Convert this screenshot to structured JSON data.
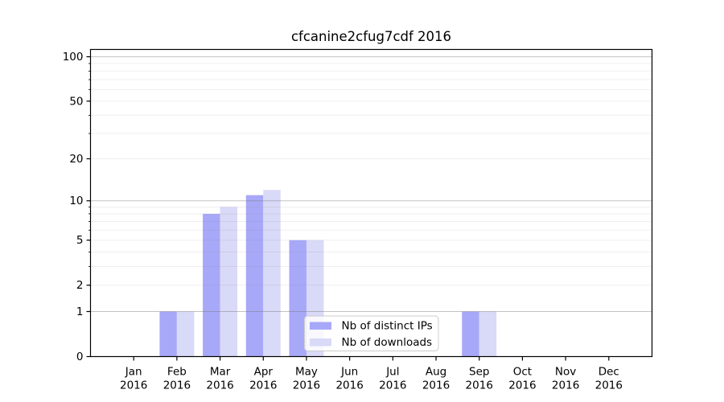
{
  "window": {
    "background": "#ffffff"
  },
  "chart_data": {
    "type": "bar",
    "title": "cfcanine2cfug7cdf 2016",
    "categories": [
      "Jan",
      "Feb",
      "Mar",
      "Apr",
      "May",
      "Jun",
      "Jul",
      "Aug",
      "Sep",
      "Oct",
      "Nov",
      "Dec"
    ],
    "year": "2016",
    "series": [
      {
        "name": "Nb of distinct IPs",
        "color": "#a8a8f8",
        "values": [
          0,
          1,
          8,
          11,
          5,
          0,
          0,
          0,
          1,
          0,
          0,
          0
        ]
      },
      {
        "name": "Nb of downloads",
        "color": "#d9d9f8",
        "values": [
          0,
          1,
          9,
          12,
          5,
          0,
          0,
          0,
          1,
          0,
          0,
          0
        ]
      }
    ],
    "yscale": "log1p",
    "yticks": [
      0,
      1,
      2,
      5,
      10,
      20,
      50,
      100
    ],
    "ylim": [
      0,
      112
    ],
    "xlabel": "",
    "ylabel": "",
    "grid": "both",
    "legend": {
      "position": "lower center",
      "labels": [
        "Nb of distinct IPs",
        "Nb of downloads"
      ]
    },
    "colors": {
      "bar_dark": "#a8a8f8",
      "bar_light": "#d9d9f8",
      "major_grid": "rgba(120,120,120,0.45)",
      "minor_grid": "rgba(120,120,120,0.12)",
      "spine": "#000000",
      "legend_border": "#cccccc",
      "legend_fill": "rgba(255,255,255,0.8)"
    }
  }
}
